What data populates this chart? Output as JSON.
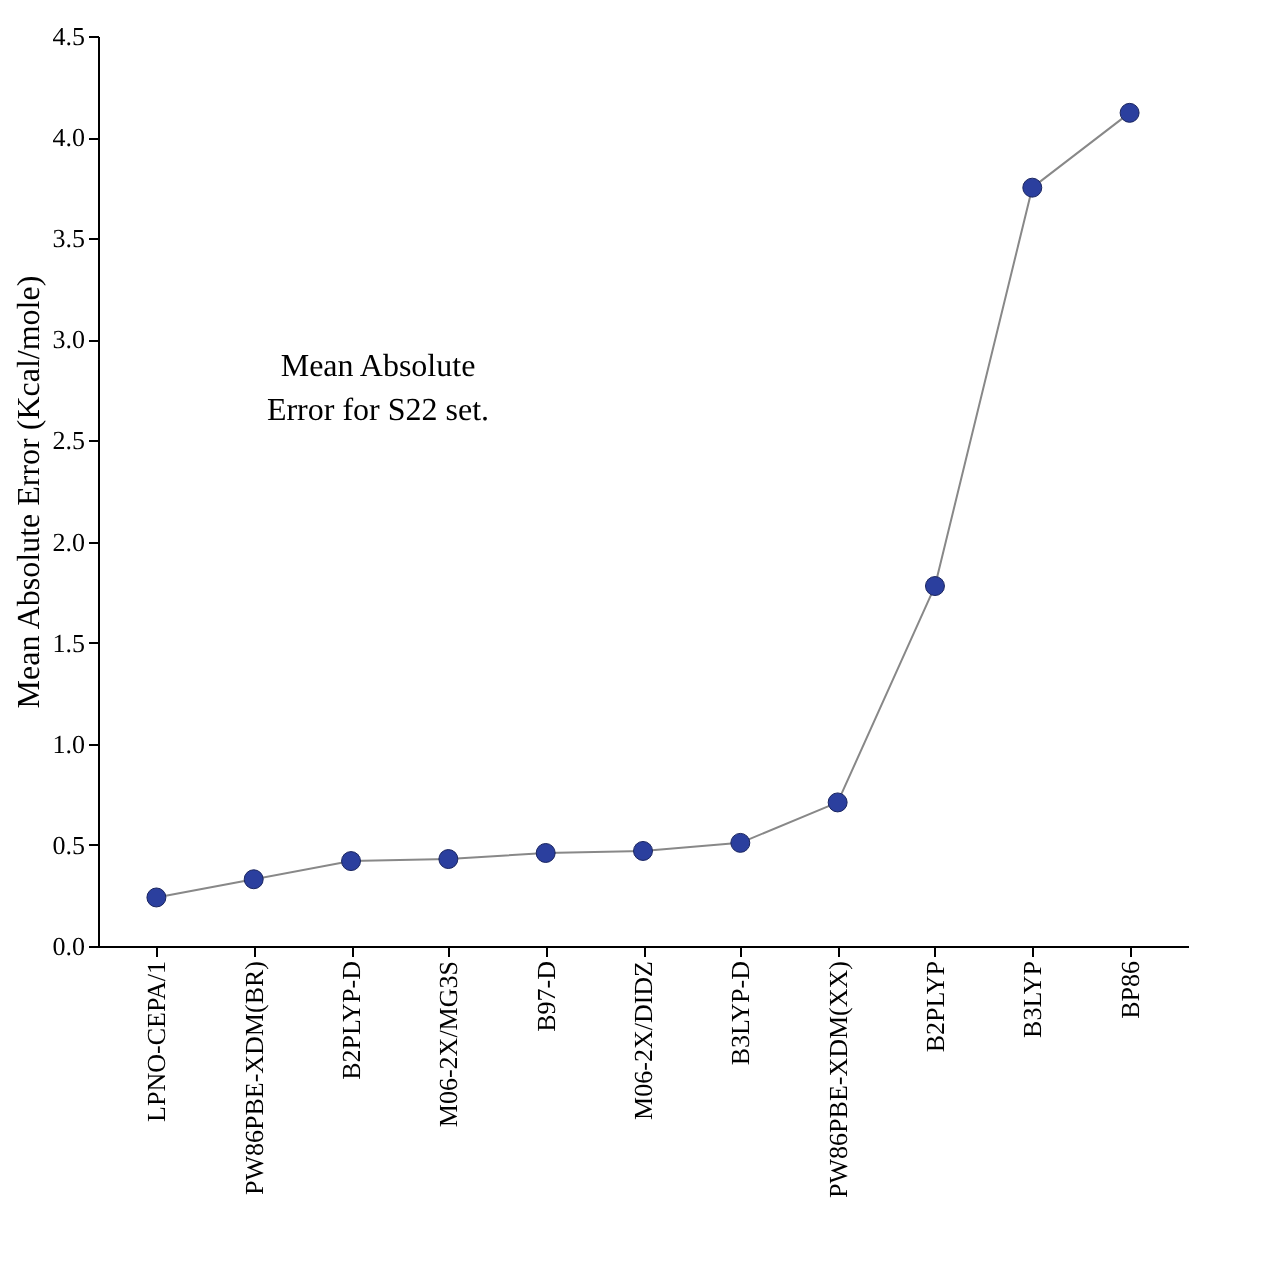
{
  "chart_data": {
    "type": "line",
    "ylabel": "Mean Absolute Error (Kcal/mole)",
    "categories": [
      "LPNO-CEPA/1",
      "PW86PBE-XDM(BR)",
      "B2PLYP-D",
      "M06-2X/MG3S",
      "B97-D",
      "M06-2X/DIDZ",
      "B3LYP-D",
      "PW86PBE-XDM(XX)",
      "B2PLYP",
      "B3LYP",
      "BP86"
    ],
    "series": [
      {
        "color": "#2b3f9e",
        "values": [
          0.24,
          0.33,
          0.42,
          0.43,
          0.46,
          0.47,
          0.51,
          0.71,
          1.78,
          3.75,
          4.12
        ]
      }
    ],
    "ylim": [
      0,
      4.5
    ],
    "yticks": [
      {
        "value": 0,
        "label": "0.0"
      },
      0.5,
      {
        "value": 1,
        "label": "1.0"
      },
      1.5,
      {
        "value": 2,
        "label": "2.0"
      },
      2.5,
      {
        "value": 3,
        "label": "3.0"
      },
      3.5,
      {
        "value": 4,
        "label": "4.0"
      },
      4.5
    ],
    "annotations": [
      "Mean Absolute\nError for S22 set."
    ],
    "marker": "circle",
    "grid": false
  }
}
